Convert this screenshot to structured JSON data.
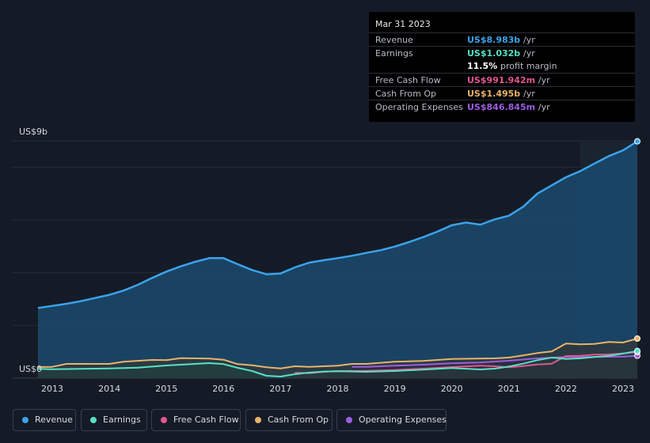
{
  "chart_data": {
    "type": "area",
    "ylabel_top": "US$9b",
    "ylabel_bottom": "US$0",
    "ylim": [
      0,
      9
    ],
    "xlim": [
      2012.75,
      2023.25
    ],
    "x_ticks": [
      "2013",
      "2014",
      "2015",
      "2016",
      "2017",
      "2018",
      "2019",
      "2020",
      "2021",
      "2022",
      "2023"
    ],
    "highlight_from": 2022.25,
    "series": [
      {
        "name": "Revenue",
        "color": "#3ba3ec",
        "key": "revenue",
        "points": [
          [
            2012.75,
            2.66
          ],
          [
            2013.0,
            2.74
          ],
          [
            2013.25,
            2.82
          ],
          [
            2013.5,
            2.92
          ],
          [
            2013.75,
            3.04
          ],
          [
            2014.0,
            3.16
          ],
          [
            2014.25,
            3.32
          ],
          [
            2014.5,
            3.54
          ],
          [
            2014.75,
            3.8
          ],
          [
            2015.0,
            4.04
          ],
          [
            2015.25,
            4.24
          ],
          [
            2015.5,
            4.41
          ],
          [
            2015.75,
            4.55
          ],
          [
            2016.0,
            4.55
          ],
          [
            2016.25,
            4.32
          ],
          [
            2016.5,
            4.1
          ],
          [
            2016.75,
            3.94
          ],
          [
            2017.0,
            3.97
          ],
          [
            2017.25,
            4.2
          ],
          [
            2017.5,
            4.38
          ],
          [
            2017.75,
            4.47
          ],
          [
            2018.0,
            4.55
          ],
          [
            2018.25,
            4.64
          ],
          [
            2018.5,
            4.75
          ],
          [
            2018.75,
            4.85
          ],
          [
            2019.0,
            4.99
          ],
          [
            2019.25,
            5.16
          ],
          [
            2019.5,
            5.35
          ],
          [
            2019.75,
            5.56
          ],
          [
            2020.0,
            5.8
          ],
          [
            2020.25,
            5.9
          ],
          [
            2020.5,
            5.82
          ],
          [
            2020.75,
            6.02
          ],
          [
            2021.0,
            6.16
          ],
          [
            2021.25,
            6.5
          ],
          [
            2021.5,
            7.0
          ],
          [
            2021.75,
            7.31
          ],
          [
            2022.0,
            7.62
          ],
          [
            2022.25,
            7.85
          ],
          [
            2022.5,
            8.14
          ],
          [
            2022.75,
            8.42
          ],
          [
            2023.0,
            8.64
          ],
          [
            2023.25,
            8.98
          ]
        ]
      },
      {
        "name": "Earnings",
        "color": "#58e0c6",
        "key": "earnings",
        "points": [
          [
            2012.75,
            0.35
          ],
          [
            2013.0,
            0.34
          ],
          [
            2013.5,
            0.35
          ],
          [
            2014.0,
            0.37
          ],
          [
            2014.5,
            0.4
          ],
          [
            2015.0,
            0.48
          ],
          [
            2015.5,
            0.54
          ],
          [
            2015.75,
            0.57
          ],
          [
            2016.0,
            0.53
          ],
          [
            2016.25,
            0.39
          ],
          [
            2016.5,
            0.27
          ],
          [
            2016.75,
            0.09
          ],
          [
            2017.0,
            0.06
          ],
          [
            2017.25,
            0.15
          ],
          [
            2017.5,
            0.21
          ],
          [
            2017.75,
            0.25
          ],
          [
            2018.0,
            0.26
          ],
          [
            2018.5,
            0.24
          ],
          [
            2019.0,
            0.27
          ],
          [
            2019.5,
            0.32
          ],
          [
            2020.0,
            0.38
          ],
          [
            2020.5,
            0.33
          ],
          [
            2020.75,
            0.36
          ],
          [
            2021.0,
            0.44
          ],
          [
            2021.25,
            0.55
          ],
          [
            2021.5,
            0.68
          ],
          [
            2021.75,
            0.78
          ],
          [
            2022.0,
            0.73
          ],
          [
            2022.25,
            0.75
          ],
          [
            2022.5,
            0.8
          ],
          [
            2022.75,
            0.85
          ],
          [
            2023.0,
            0.93
          ],
          [
            2023.25,
            1.03
          ]
        ]
      },
      {
        "name": "Free Cash Flow",
        "color": "#e0578e",
        "key": "fcf",
        "points": [
          [
            2017.25,
            0.2
          ],
          [
            2017.5,
            0.19
          ],
          [
            2017.75,
            0.24
          ],
          [
            2018.0,
            0.27
          ],
          [
            2018.5,
            0.28
          ],
          [
            2019.0,
            0.31
          ],
          [
            2019.5,
            0.36
          ],
          [
            2020.0,
            0.42
          ],
          [
            2020.5,
            0.47
          ],
          [
            2020.75,
            0.45
          ],
          [
            2021.0,
            0.41
          ],
          [
            2021.25,
            0.46
          ],
          [
            2021.5,
            0.52
          ],
          [
            2021.75,
            0.55
          ],
          [
            2022.0,
            0.84
          ],
          [
            2022.25,
            0.85
          ],
          [
            2022.5,
            0.89
          ],
          [
            2022.75,
            0.9
          ],
          [
            2023.0,
            0.94
          ],
          [
            2023.25,
            0.99
          ]
        ]
      },
      {
        "name": "Cash From Op",
        "color": "#e9b36b",
        "key": "cfo",
        "points": [
          [
            2012.75,
            0.42
          ],
          [
            2013.0,
            0.43
          ],
          [
            2013.25,
            0.54
          ],
          [
            2014.0,
            0.54
          ],
          [
            2014.25,
            0.62
          ],
          [
            2014.75,
            0.69
          ],
          [
            2015.0,
            0.68
          ],
          [
            2015.25,
            0.76
          ],
          [
            2015.75,
            0.74
          ],
          [
            2016.0,
            0.7
          ],
          [
            2016.25,
            0.53
          ],
          [
            2016.5,
            0.49
          ],
          [
            2016.75,
            0.41
          ],
          [
            2017.0,
            0.37
          ],
          [
            2017.25,
            0.45
          ],
          [
            2017.5,
            0.43
          ],
          [
            2018.0,
            0.47
          ],
          [
            2018.25,
            0.54
          ],
          [
            2018.5,
            0.54
          ],
          [
            2019.0,
            0.62
          ],
          [
            2019.5,
            0.65
          ],
          [
            2020.0,
            0.73
          ],
          [
            2020.5,
            0.74
          ],
          [
            2020.75,
            0.75
          ],
          [
            2021.0,
            0.78
          ],
          [
            2021.25,
            0.86
          ],
          [
            2021.5,
            0.95
          ],
          [
            2021.75,
            1.01
          ],
          [
            2022.0,
            1.31
          ],
          [
            2022.25,
            1.28
          ],
          [
            2022.5,
            1.3
          ],
          [
            2022.75,
            1.37
          ],
          [
            2023.0,
            1.35
          ],
          [
            2023.25,
            1.5
          ]
        ]
      },
      {
        "name": "Operating Expenses",
        "color": "#9c5ee0",
        "key": "opex",
        "points": [
          [
            2018.25,
            0.43
          ],
          [
            2018.5,
            0.43
          ],
          [
            2019.0,
            0.47
          ],
          [
            2019.5,
            0.51
          ],
          [
            2020.0,
            0.56
          ],
          [
            2020.5,
            0.59
          ],
          [
            2021.0,
            0.66
          ],
          [
            2021.5,
            0.75
          ],
          [
            2022.0,
            0.8
          ],
          [
            2022.5,
            0.8
          ],
          [
            2023.0,
            0.82
          ],
          [
            2023.25,
            0.85
          ]
        ]
      }
    ]
  },
  "tooltip": {
    "date": "Mar 31 2023",
    "rows": [
      {
        "label": "Revenue",
        "value": "US$8.983b",
        "unit": "/yr",
        "color": "#3ba3ec"
      },
      {
        "label": "Earnings",
        "value": "US$1.032b",
        "unit": "/yr",
        "color": "#58e0c6"
      },
      {
        "label": "",
        "value": "11.5%",
        "unit": "profit margin",
        "color": "#ffffff"
      },
      {
        "label": "Free Cash Flow",
        "value": "US$991.942m",
        "unit": "/yr",
        "color": "#e0578e"
      },
      {
        "label": "Cash From Op",
        "value": "US$1.495b",
        "unit": "/yr",
        "color": "#e9b36b"
      },
      {
        "label": "Operating Expenses",
        "value": "US$846.845m",
        "unit": "/yr",
        "color": "#9c5ee0"
      }
    ]
  },
  "legend": [
    {
      "label": "Revenue",
      "color": "#3ba3ec"
    },
    {
      "label": "Earnings",
      "color": "#58e0c6"
    },
    {
      "label": "Free Cash Flow",
      "color": "#e0578e"
    },
    {
      "label": "Cash From Op",
      "color": "#e9b36b"
    },
    {
      "label": "Operating Expenses",
      "color": "#9c5ee0"
    }
  ]
}
